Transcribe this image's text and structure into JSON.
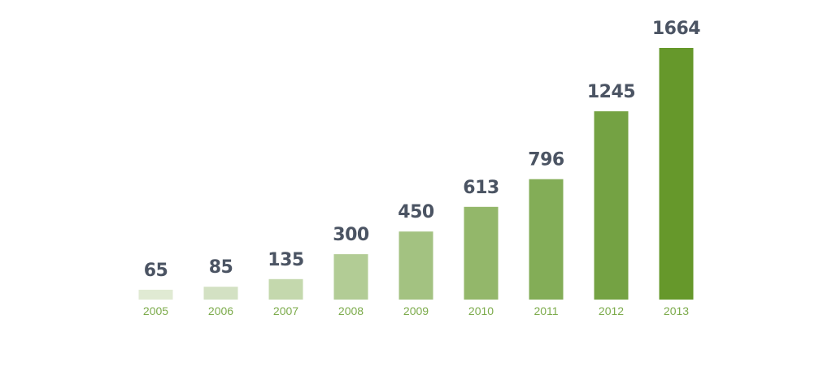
{
  "chart_data": {
    "type": "bar",
    "title": "",
    "xlabel": "",
    "ylabel": "",
    "categories": [
      "2005",
      "2006",
      "2007",
      "2008",
      "2009",
      "2010",
      "2011",
      "2012",
      "2013"
    ],
    "values": [
      65,
      85,
      135,
      300,
      450,
      613,
      796,
      1245,
      1664
    ],
    "data_labels": [
      "65",
      "85",
      "135",
      "300",
      "450",
      "613",
      "796",
      "1245",
      "1664"
    ],
    "ylim": [
      0,
      1664
    ],
    "grid": false,
    "legend": "none",
    "colors": {
      "bars": [
        "#e0ead3",
        "#d3e1c3",
        "#c4d8ad",
        "#b2cc95",
        "#a3c281",
        "#93b76a",
        "#83ad57",
        "#74a243",
        "#66982b"
      ],
      "value_label": "#4b5463",
      "tick_label": "#7cab4b"
    }
  }
}
